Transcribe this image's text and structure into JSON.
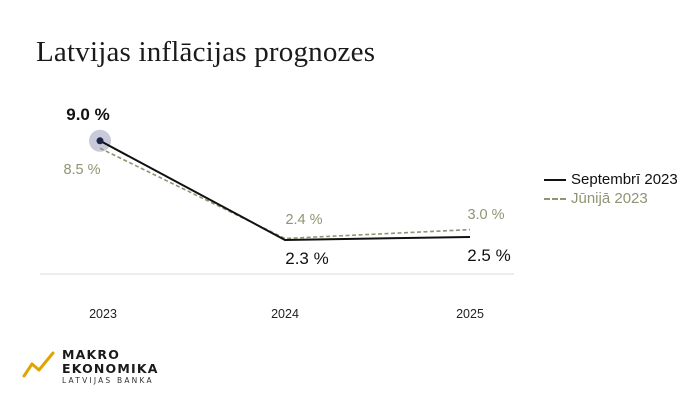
{
  "title": "Latvijas inflācijas prognozes",
  "chart_data": {
    "type": "line",
    "title": "Latvijas inflācijas prognozes",
    "x": [
      "2023",
      "2024",
      "2025"
    ],
    "series": [
      {
        "name": "Septembrī 2023",
        "values": [
          9.0,
          2.3,
          2.5
        ],
        "labels": [
          "9.0 %",
          "2.3 %",
          "2.5 %"
        ],
        "color": "#111111",
        "style": "solid"
      },
      {
        "name": "Jūnijā 2023",
        "values": [
          8.5,
          2.4,
          3.0
        ],
        "labels": [
          "8.5 %",
          "2.4 %",
          "3.0 %"
        ],
        "color": "#8f9472",
        "style": "dashed"
      }
    ],
    "ylim": [
      0,
      10
    ],
    "grid": false,
    "legend": "right",
    "highlight_color": "#c9cad9",
    "highlight_dot_color": "#1c2447"
  },
  "logo": {
    "line1": "MAKRO",
    "line2": "EKONOMIKA",
    "line3": "LATVIJAS BANKA",
    "icon": "zigzag-trend-icon",
    "color": "#e0a400"
  }
}
